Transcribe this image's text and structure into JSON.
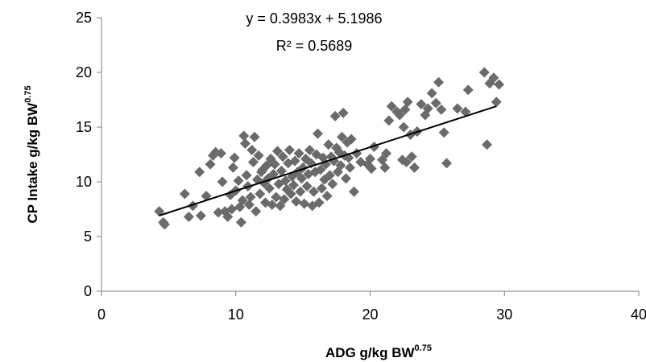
{
  "chart_data": {
    "type": "scatter",
    "xlabel": "ADG g/kg BW",
    "xlabel_sup": "0.75",
    "ylabel": "CP Intake g/kg BW",
    "ylabel_sup": "0.75",
    "xlim": [
      0,
      40
    ],
    "ylim": [
      0,
      25
    ],
    "xticks": [
      0,
      10,
      20,
      30,
      40
    ],
    "yticks": [
      0,
      5,
      10,
      15,
      20,
      25
    ],
    "grid": false,
    "marker_color": "#6b6b6b",
    "trendline": {
      "equation": "y = 0.3983x + 5.1986",
      "r_squared": "R² = 0.5689",
      "slope": 0.3983,
      "intercept": 5.1986,
      "x_range": [
        4.3,
        29.4
      ],
      "color": "#000000"
    },
    "points": [
      [
        4.3,
        7.3
      ],
      [
        4.6,
        6.3
      ],
      [
        4.7,
        6.1
      ],
      [
        6.2,
        8.9
      ],
      [
        6.5,
        6.8
      ],
      [
        6.8,
        7.8
      ],
      [
        7.3,
        10.9
      ],
      [
        7.4,
        6.9
      ],
      [
        7.8,
        8.7
      ],
      [
        8.1,
        11.6
      ],
      [
        8.3,
        12.4
      ],
      [
        8.5,
        12.7
      ],
      [
        8.7,
        7.2
      ],
      [
        8.9,
        12.6
      ],
      [
        9.0,
        10.0
      ],
      [
        9.2,
        7.3
      ],
      [
        9.4,
        6.8
      ],
      [
        9.6,
        8.8
      ],
      [
        9.7,
        7.5
      ],
      [
        9.8,
        11.3
      ],
      [
        9.9,
        12.2
      ],
      [
        10.0,
        9.2
      ],
      [
        10.2,
        10.1
      ],
      [
        10.3,
        7.7
      ],
      [
        10.4,
        6.3
      ],
      [
        10.5,
        8.3
      ],
      [
        10.6,
        14.2
      ],
      [
        10.7,
        13.5
      ],
      [
        10.8,
        10.6
      ],
      [
        10.9,
        9.6
      ],
      [
        11.0,
        7.9
      ],
      [
        11.1,
        8.6
      ],
      [
        11.2,
        12.9
      ],
      [
        11.3,
        11.8
      ],
      [
        11.4,
        14.1
      ],
      [
        11.5,
        7.3
      ],
      [
        11.6,
        10.2
      ],
      [
        11.7,
        12.4
      ],
      [
        11.8,
        8.9
      ],
      [
        11.9,
        10.9
      ],
      [
        12.0,
        11.1
      ],
      [
        12.1,
        9.9
      ],
      [
        12.2,
        8.1
      ],
      [
        12.3,
        11.5
      ],
      [
        12.4,
        10.3
      ],
      [
        12.5,
        9.4
      ],
      [
        12.6,
        12.1
      ],
      [
        12.7,
        7.9
      ],
      [
        12.8,
        10.7
      ],
      [
        12.9,
        11.6
      ],
      [
        13.0,
        8.6
      ],
      [
        13.1,
        12.8
      ],
      [
        13.2,
        9.8
      ],
      [
        13.3,
        7.8
      ],
      [
        13.4,
        11.0
      ],
      [
        13.5,
        12.3
      ],
      [
        13.6,
        8.4
      ],
      [
        13.7,
        10.1
      ],
      [
        13.8,
        9.3
      ],
      [
        13.9,
        11.7
      ],
      [
        14.0,
        12.9
      ],
      [
        14.1,
        8.9
      ],
      [
        14.2,
        10.5
      ],
      [
        14.3,
        9.7
      ],
      [
        14.4,
        11.9
      ],
      [
        14.5,
        8.2
      ],
      [
        14.6,
        10.9
      ],
      [
        14.7,
        12.6
      ],
      [
        14.8,
        9.1
      ],
      [
        14.9,
        10.3
      ],
      [
        15.0,
        11.3
      ],
      [
        15.1,
        8.0
      ],
      [
        15.2,
        12.1
      ],
      [
        15.3,
        9.6
      ],
      [
        15.4,
        10.7
      ],
      [
        15.5,
        12.9
      ],
      [
        15.6,
        11.7
      ],
      [
        15.7,
        7.8
      ],
      [
        15.8,
        9.1
      ],
      [
        15.9,
        10.9
      ],
      [
        16.0,
        12.5
      ],
      [
        16.1,
        14.4
      ],
      [
        16.2,
        8.1
      ],
      [
        16.3,
        11.1
      ],
      [
        16.4,
        9.4
      ],
      [
        16.5,
        12.2
      ],
      [
        16.6,
        10.2
      ],
      [
        16.7,
        11.6
      ],
      [
        16.8,
        8.7
      ],
      [
        16.9,
        13.4
      ],
      [
        17.0,
        10.6
      ],
      [
        17.1,
        12.3
      ],
      [
        17.2,
        9.8
      ],
      [
        17.3,
        11.9
      ],
      [
        17.4,
        16.0
      ],
      [
        17.5,
        13.1
      ],
      [
        17.6,
        10.9
      ],
      [
        17.7,
        12.7
      ],
      [
        17.8,
        11.5
      ],
      [
        17.9,
        14.1
      ],
      [
        18.0,
        16.3
      ],
      [
        18.1,
        12.4
      ],
      [
        18.2,
        10.3
      ],
      [
        18.3,
        13.6
      ],
      [
        18.4,
        12.2
      ],
      [
        18.5,
        11.3
      ],
      [
        18.6,
        13.9
      ],
      [
        18.8,
        9.1
      ],
      [
        19.0,
        12.6
      ],
      [
        19.3,
        11.8
      ],
      [
        19.8,
        11.6
      ],
      [
        20.0,
        12.1
      ],
      [
        20.1,
        11.2
      ],
      [
        20.3,
        13.2
      ],
      [
        20.9,
        12.0
      ],
      [
        21.1,
        11.3
      ],
      [
        21.2,
        12.6
      ],
      [
        21.4,
        15.6
      ],
      [
        21.6,
        16.9
      ],
      [
        22.0,
        16.4
      ],
      [
        22.2,
        16.1
      ],
      [
        22.4,
        12.0
      ],
      [
        22.5,
        15.0
      ],
      [
        22.6,
        16.6
      ],
      [
        22.7,
        11.8
      ],
      [
        22.8,
        17.3
      ],
      [
        23.0,
        14.3
      ],
      [
        23.1,
        12.3
      ],
      [
        23.3,
        11.3
      ],
      [
        23.5,
        14.6
      ],
      [
        23.8,
        17.1
      ],
      [
        24.1,
        16.1
      ],
      [
        24.3,
        16.7
      ],
      [
        24.6,
        18.1
      ],
      [
        24.9,
        17.2
      ],
      [
        25.1,
        19.1
      ],
      [
        25.3,
        16.6
      ],
      [
        25.5,
        14.5
      ],
      [
        25.7,
        11.7
      ],
      [
        26.5,
        16.7
      ],
      [
        27.1,
        16.4
      ],
      [
        27.3,
        18.4
      ],
      [
        28.5,
        20.0
      ],
      [
        28.7,
        13.4
      ],
      [
        28.9,
        19.0
      ],
      [
        29.2,
        19.5
      ],
      [
        29.4,
        17.3
      ],
      [
        29.6,
        18.9
      ]
    ]
  }
}
